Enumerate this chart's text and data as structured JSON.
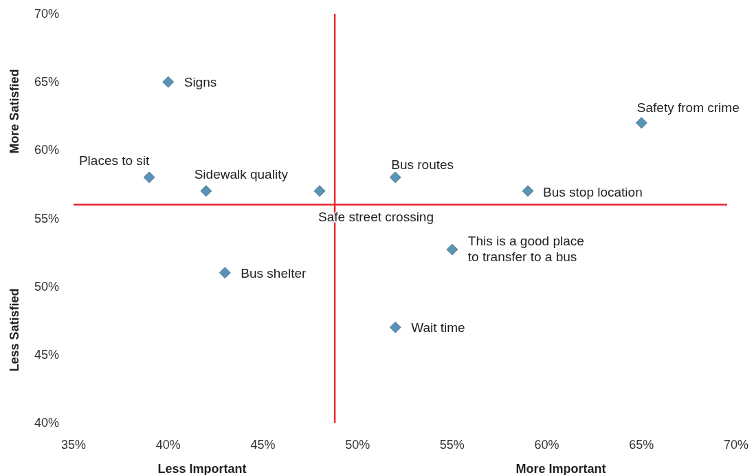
{
  "chart_data": {
    "type": "scatter",
    "marker": "diamond",
    "grid": false,
    "series": [
      {
        "name": "Signs",
        "color": "#5b93b5",
        "x": [
          40
        ],
        "values": [
          65
        ]
      },
      {
        "name": "Places to sit",
        "color": "#5b93b5",
        "x": [
          39
        ],
        "values": [
          58
        ]
      },
      {
        "name": "Sidewalk quality",
        "color": "#5b93b5",
        "x": [
          42
        ],
        "values": [
          57
        ]
      },
      {
        "name": "Safe street crossing",
        "color": "#5b93b5",
        "x": [
          48
        ],
        "values": [
          57
        ]
      },
      {
        "name": "Bus routes",
        "color": "#5b93b5",
        "x": [
          52
        ],
        "values": [
          58
        ]
      },
      {
        "name": "Bus stop location",
        "color": "#5b93b5",
        "x": [
          59
        ],
        "values": [
          57
        ]
      },
      {
        "name": "Safety from crime",
        "color": "#5b93b5",
        "x": [
          65
        ],
        "values": [
          62
        ]
      },
      {
        "name": "This is a good place to transfer to a bus",
        "color": "#5b93b5",
        "x": [
          55
        ],
        "values": [
          52.7
        ]
      },
      {
        "name": "Bus shelter",
        "color": "#5b93b5",
        "x": [
          43
        ],
        "values": [
          51
        ]
      },
      {
        "name": "Wait time",
        "color": "#5b93b5",
        "x": [
          52
        ],
        "values": [
          47
        ]
      }
    ],
    "xlim": [
      35,
      70
    ],
    "xticks": [
      {
        "value": 35,
        "label": "35%"
      },
      {
        "value": 40,
        "label": "40%"
      },
      {
        "value": 45,
        "label": "45%"
      },
      {
        "value": 50,
        "label": "50%"
      },
      {
        "value": 55,
        "label": "55%"
      },
      {
        "value": 60,
        "label": "60%"
      },
      {
        "value": 65,
        "label": "65%"
      },
      {
        "value": 70,
        "label": "70%"
      }
    ],
    "ylim": [
      40,
      70
    ],
    "yticks": [
      {
        "value": 40,
        "label": "40%"
      },
      {
        "value": 45,
        "label": "45%"
      },
      {
        "value": 50,
        "label": "50%"
      },
      {
        "value": 55,
        "label": "55%"
      },
      {
        "value": 60,
        "label": "60%"
      },
      {
        "value": 65,
        "label": "65%"
      },
      {
        "value": 70,
        "label": "70%"
      }
    ],
    "ref_lines": [
      {
        "axis": "x",
        "value": 48.8,
        "color": "#e8262b"
      },
      {
        "axis": "y",
        "value": 56,
        "color": "#e8262b"
      }
    ],
    "annotations": [
      "Less Important",
      "More Important",
      "More Satisfied",
      "Less Satisfied"
    ]
  }
}
